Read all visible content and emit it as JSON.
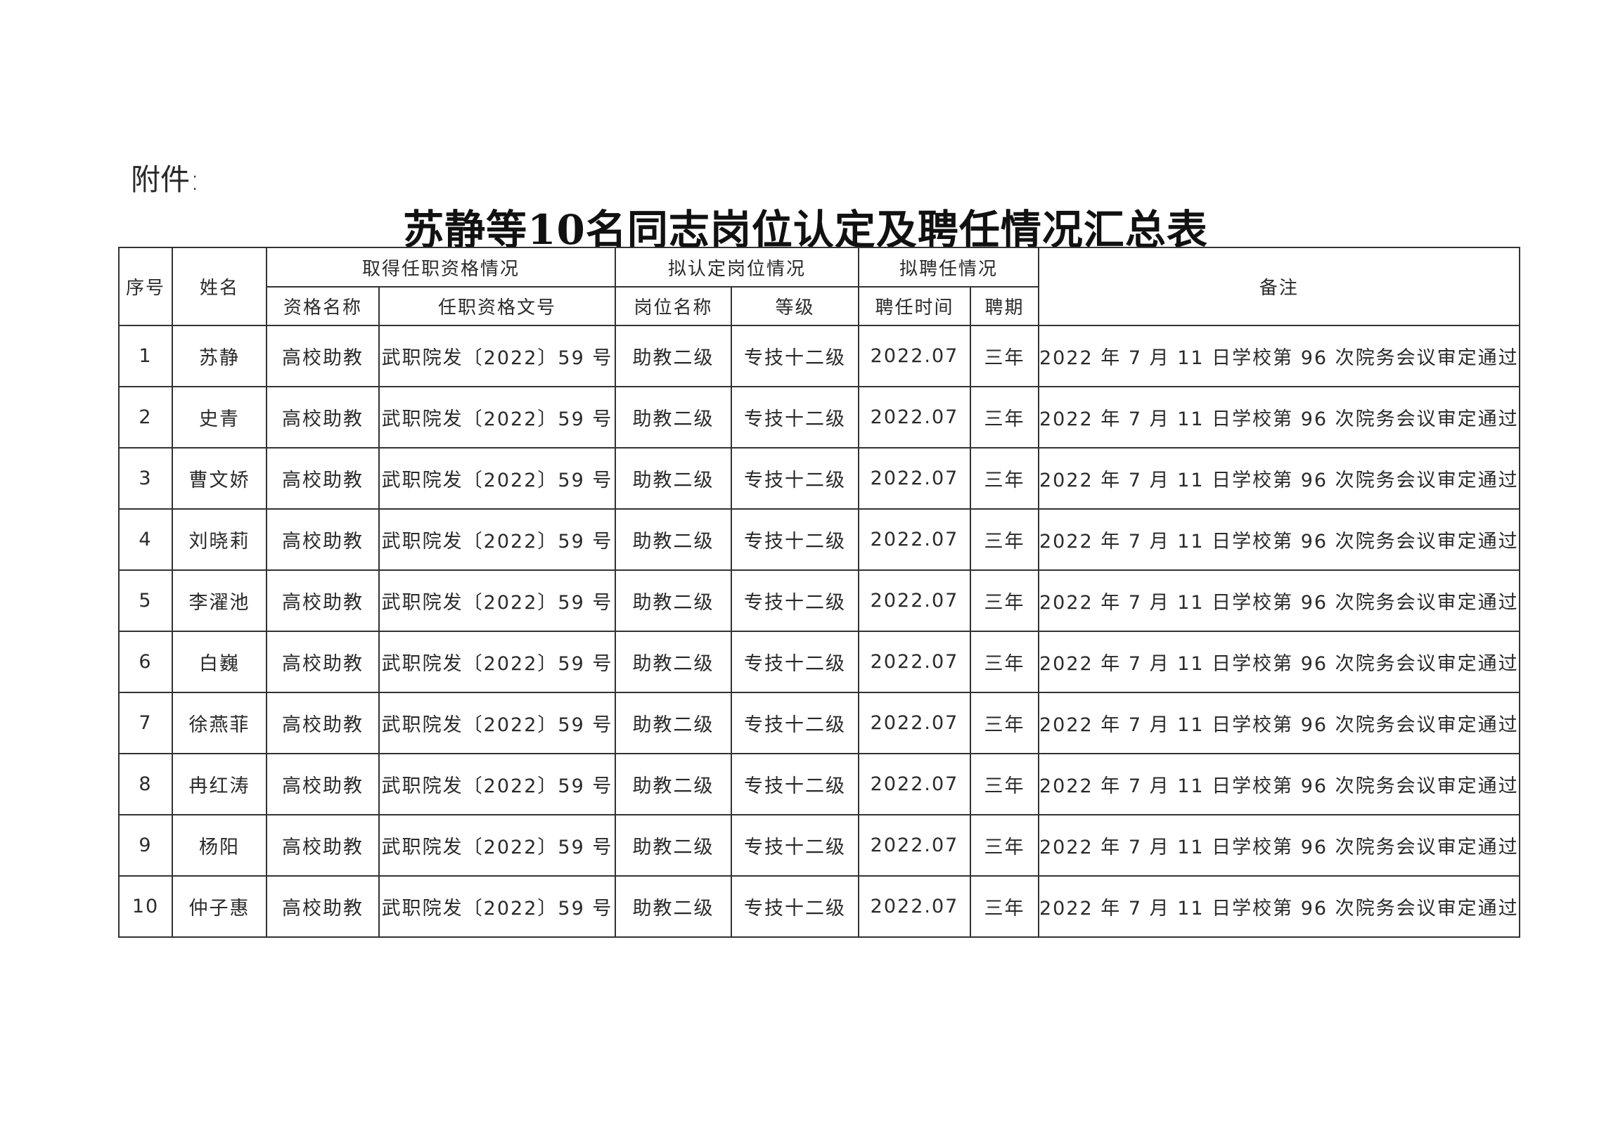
{
  "attachment_label": "附件:",
  "title": "苏静等10名同志岗位认定及聘任情况汇总表",
  "headers": {
    "seq": "序号",
    "name": "姓名",
    "qualification_group": "取得任职资格情况",
    "qualification_name": "资格名称",
    "qualification_doc": "任职资格文号",
    "position_group": "拟认定岗位情况",
    "position_name": "岗位名称",
    "grade": "等级",
    "hire_group": "拟聘任情况",
    "hire_time": "聘任时间",
    "hire_term": "聘期",
    "remarks": "备注"
  },
  "rows": [
    {
      "seq": "1",
      "name": "苏静",
      "qual": "高校助教",
      "doc": "武职院发〔2022〕59 号",
      "pos": "助教二级",
      "grade": "专技十二级",
      "time": "2022.07",
      "term": "三年",
      "remark": "2022 年 7 月 11 日学校第 96 次院务会议审定通过"
    },
    {
      "seq": "2",
      "name": "史青",
      "qual": "高校助教",
      "doc": "武职院发〔2022〕59 号",
      "pos": "助教二级",
      "grade": "专技十二级",
      "time": "2022.07",
      "term": "三年",
      "remark": "2022 年 7 月 11 日学校第 96 次院务会议审定通过"
    },
    {
      "seq": "3",
      "name": "曹文娇",
      "qual": "高校助教",
      "doc": "武职院发〔2022〕59 号",
      "pos": "助教二级",
      "grade": "专技十二级",
      "time": "2022.07",
      "term": "三年",
      "remark": "2022 年 7 月 11 日学校第 96 次院务会议审定通过"
    },
    {
      "seq": "4",
      "name": "刘晓莉",
      "qual": "高校助教",
      "doc": "武职院发〔2022〕59 号",
      "pos": "助教二级",
      "grade": "专技十二级",
      "time": "2022.07",
      "term": "三年",
      "remark": "2022 年 7 月 11 日学校第 96 次院务会议审定通过"
    },
    {
      "seq": "5",
      "name": "李濯池",
      "qual": "高校助教",
      "doc": "武职院发〔2022〕59 号",
      "pos": "助教二级",
      "grade": "专技十二级",
      "time": "2022.07",
      "term": "三年",
      "remark": "2022 年 7 月 11 日学校第 96 次院务会议审定通过"
    },
    {
      "seq": "6",
      "name": "白巍",
      "qual": "高校助教",
      "doc": "武职院发〔2022〕59 号",
      "pos": "助教二级",
      "grade": "专技十二级",
      "time": "2022.07",
      "term": "三年",
      "remark": "2022 年 7 月 11 日学校第 96 次院务会议审定通过"
    },
    {
      "seq": "7",
      "name": "徐燕菲",
      "qual": "高校助教",
      "doc": "武职院发〔2022〕59 号",
      "pos": "助教二级",
      "grade": "专技十二级",
      "time": "2022.07",
      "term": "三年",
      "remark": "2022 年 7 月 11 日学校第 96 次院务会议审定通过"
    },
    {
      "seq": "8",
      "name": "冉红涛",
      "qual": "高校助教",
      "doc": "武职院发〔2022〕59 号",
      "pos": "助教二级",
      "grade": "专技十二级",
      "time": "2022.07",
      "term": "三年",
      "remark": "2022 年 7 月 11 日学校第 96 次院务会议审定通过"
    },
    {
      "seq": "9",
      "name": "杨阳",
      "qual": "高校助教",
      "doc": "武职院发〔2022〕59 号",
      "pos": "助教二级",
      "grade": "专技十二级",
      "time": "2022.07",
      "term": "三年",
      "remark": "2022 年 7 月 11 日学校第 96 次院务会议审定通过"
    },
    {
      "seq": "10",
      "name": "仲子惠",
      "qual": "高校助教",
      "doc": "武职院发〔2022〕59 号",
      "pos": "助教二级",
      "grade": "专技十二级",
      "time": "2022.07",
      "term": "三年",
      "remark": "2022 年 7 月 11 日学校第 96 次院务会议审定通过"
    }
  ]
}
